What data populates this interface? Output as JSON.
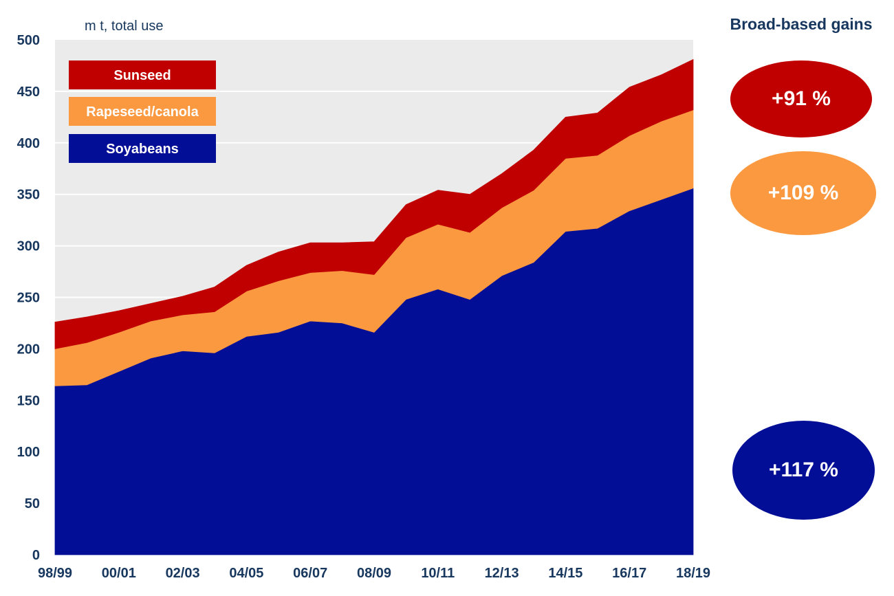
{
  "side_panel": {
    "title": "Broad-based gains",
    "gains": [
      {
        "series": "Sunseed",
        "label": "+91 %",
        "color": "#c00000"
      },
      {
        "series": "Rapeseed/canola",
        "label": "+109 %",
        "color": "#fb9940"
      },
      {
        "series": "Soyabeans",
        "label": "+117 %",
        "color": "#020e96"
      }
    ]
  },
  "chart_data": {
    "type": "area",
    "stacked": true,
    "title": "",
    "unit_label": "m t, total use",
    "xlabel": "",
    "ylabel": "m t, total use",
    "ylim": [
      0,
      500
    ],
    "yticks": [
      0,
      50,
      100,
      150,
      200,
      250,
      300,
      350,
      400,
      450,
      500
    ],
    "grid": true,
    "background": "#ebebeb",
    "legend_position": "top-left",
    "x": [
      "98/99",
      "99/00",
      "00/01",
      "01/02",
      "02/03",
      "03/04",
      "04/05",
      "05/06",
      "06/07",
      "07/08",
      "08/09",
      "09/10",
      "10/11",
      "11/12",
      "12/13",
      "13/14",
      "14/15",
      "15/16",
      "16/17",
      "17/18",
      "18/19"
    ],
    "xtick_labels": [
      "98/99",
      "00/01",
      "02/03",
      "04/05",
      "06/07",
      "08/09",
      "10/11",
      "12/13",
      "14/15",
      "16/17",
      "18/19"
    ],
    "series": [
      {
        "name": "Soyabeans",
        "color": "#020e96",
        "values": [
          164,
          165,
          178,
          191,
          198,
          196,
          212,
          216,
          227,
          225,
          216,
          248,
          258,
          248,
          271,
          284,
          314,
          317,
          334,
          345,
          356
        ]
      },
      {
        "name": "Rapeseed/canola",
        "color": "#fb9940",
        "values": [
          36,
          41,
          38,
          36,
          35,
          40,
          44,
          50,
          47,
          51,
          56,
          60,
          63,
          65,
          66,
          70,
          71,
          71,
          73,
          76,
          76
        ]
      },
      {
        "name": "Sunseed",
        "color": "#c00000",
        "values": [
          26,
          25,
          21,
          17,
          18,
          24,
          25,
          28,
          29,
          27,
          32,
          32,
          33,
          37,
          33,
          39,
          40,
          41,
          47,
          45,
          49
        ]
      }
    ],
    "legend": [
      "Sunseed",
      "Rapeseed/canola",
      "Soyabeans"
    ]
  }
}
